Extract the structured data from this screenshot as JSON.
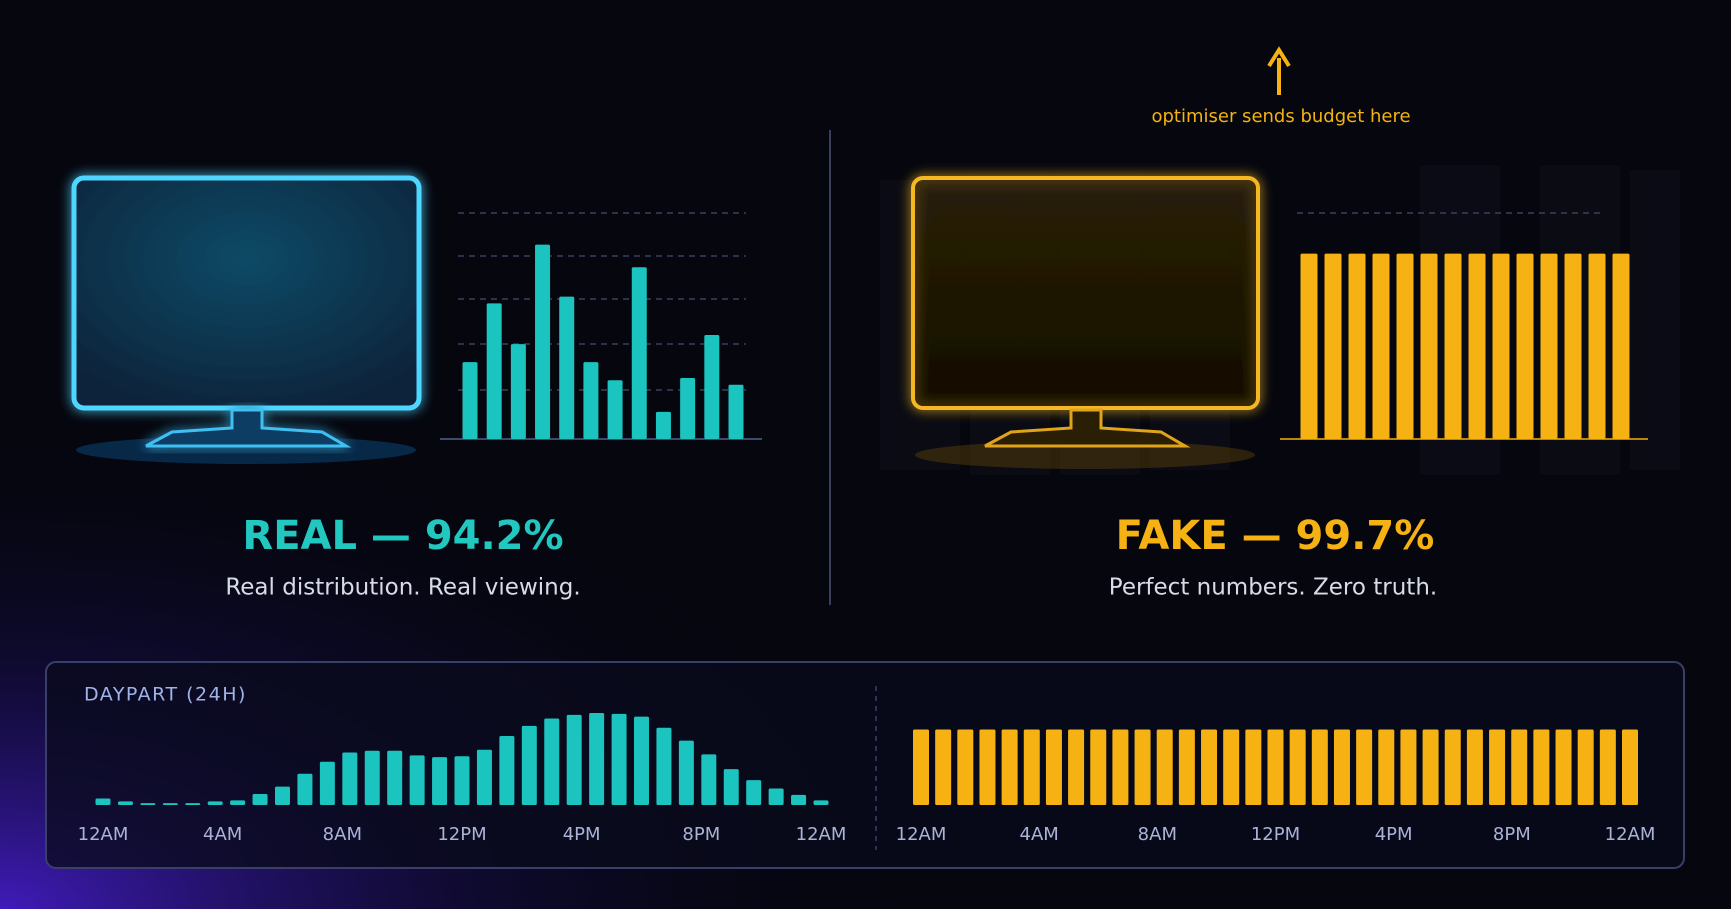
{
  "chart_data": [
    {
      "type": "bar",
      "title": "REAL — 94.2%",
      "subtitle": "Real distribution. Real viewing.",
      "color": "#1cc4c0",
      "values": [
        34,
        60,
        42,
        86,
        63,
        34,
        26,
        76,
        12,
        27,
        46,
        24
      ],
      "ylim": [
        0,
        100
      ]
    },
    {
      "type": "bar",
      "title": "FAKE — 99.7%",
      "subtitle": "Perfect numbers. Zero truth.",
      "annotation": "optimiser sends budget here",
      "color": "#f5b212",
      "values": [
        82,
        82,
        82,
        82,
        82,
        82,
        82,
        82,
        82,
        82,
        82,
        82,
        82,
        82
      ],
      "ylim": [
        0,
        100
      ]
    },
    {
      "type": "bar",
      "title": "DAYPART (24H)",
      "color": "#1cc4c0",
      "x": [
        0,
        0.75,
        1.5,
        2.25,
        3,
        3.75,
        4.5,
        5.25,
        6,
        6.75,
        7.5,
        8.25,
        9,
        9.75,
        10.5,
        11.25,
        12,
        12.75,
        13.5,
        14.25,
        15,
        15.75,
        16.5,
        17.25,
        18,
        18.75,
        19.5,
        20.25,
        21,
        21.75,
        22.5,
        23.25,
        24
      ],
      "values": [
        7,
        4,
        2,
        2,
        2,
        4,
        5,
        12,
        20,
        34,
        47,
        57,
        59,
        59,
        54,
        52,
        53,
        60,
        75,
        86,
        94,
        98,
        100,
        99,
        96,
        84,
        70,
        55,
        39,
        27,
        18,
        11,
        5
      ],
      "xlim": [
        0,
        24
      ],
      "ylim": [
        0,
        100
      ],
      "xticks": [
        {
          "value": 0,
          "label": "12AM"
        },
        {
          "value": 4,
          "label": "4AM"
        },
        {
          "value": 8,
          "label": "8AM"
        },
        {
          "value": 12,
          "label": "12PM"
        },
        {
          "value": 16,
          "label": "4PM"
        },
        {
          "value": 20,
          "label": "8PM"
        },
        {
          "value": 24,
          "label": "12AM"
        }
      ]
    },
    {
      "type": "bar",
      "color": "#f5b212",
      "x": [
        0,
        0.75,
        1.5,
        2.25,
        3,
        3.75,
        4.5,
        5.25,
        6,
        6.75,
        7.5,
        8.25,
        9,
        9.75,
        10.5,
        11.25,
        12,
        12.75,
        13.5,
        14.25,
        15,
        15.75,
        16.5,
        17.25,
        18,
        18.75,
        19.5,
        20.25,
        21,
        21.75,
        22.5,
        23.25,
        24
      ],
      "values": [
        82,
        82,
        82,
        82,
        82,
        82,
        82,
        82,
        82,
        82,
        82,
        82,
        82,
        82,
        82,
        82,
        82,
        82,
        82,
        82,
        82,
        82,
        82,
        82,
        82,
        82,
        82,
        82,
        82,
        82,
        82,
        82,
        82
      ],
      "xlim": [
        0,
        24
      ],
      "ylim": [
        0,
        100
      ],
      "xticks": [
        {
          "value": 0,
          "label": "12AM"
        },
        {
          "value": 4,
          "label": "4AM"
        },
        {
          "value": 8,
          "label": "8AM"
        },
        {
          "value": 12,
          "label": "12PM"
        },
        {
          "value": 16,
          "label": "4PM"
        },
        {
          "value": 20,
          "label": "8PM"
        },
        {
          "value": 24,
          "label": "12AM"
        }
      ]
    }
  ]
}
